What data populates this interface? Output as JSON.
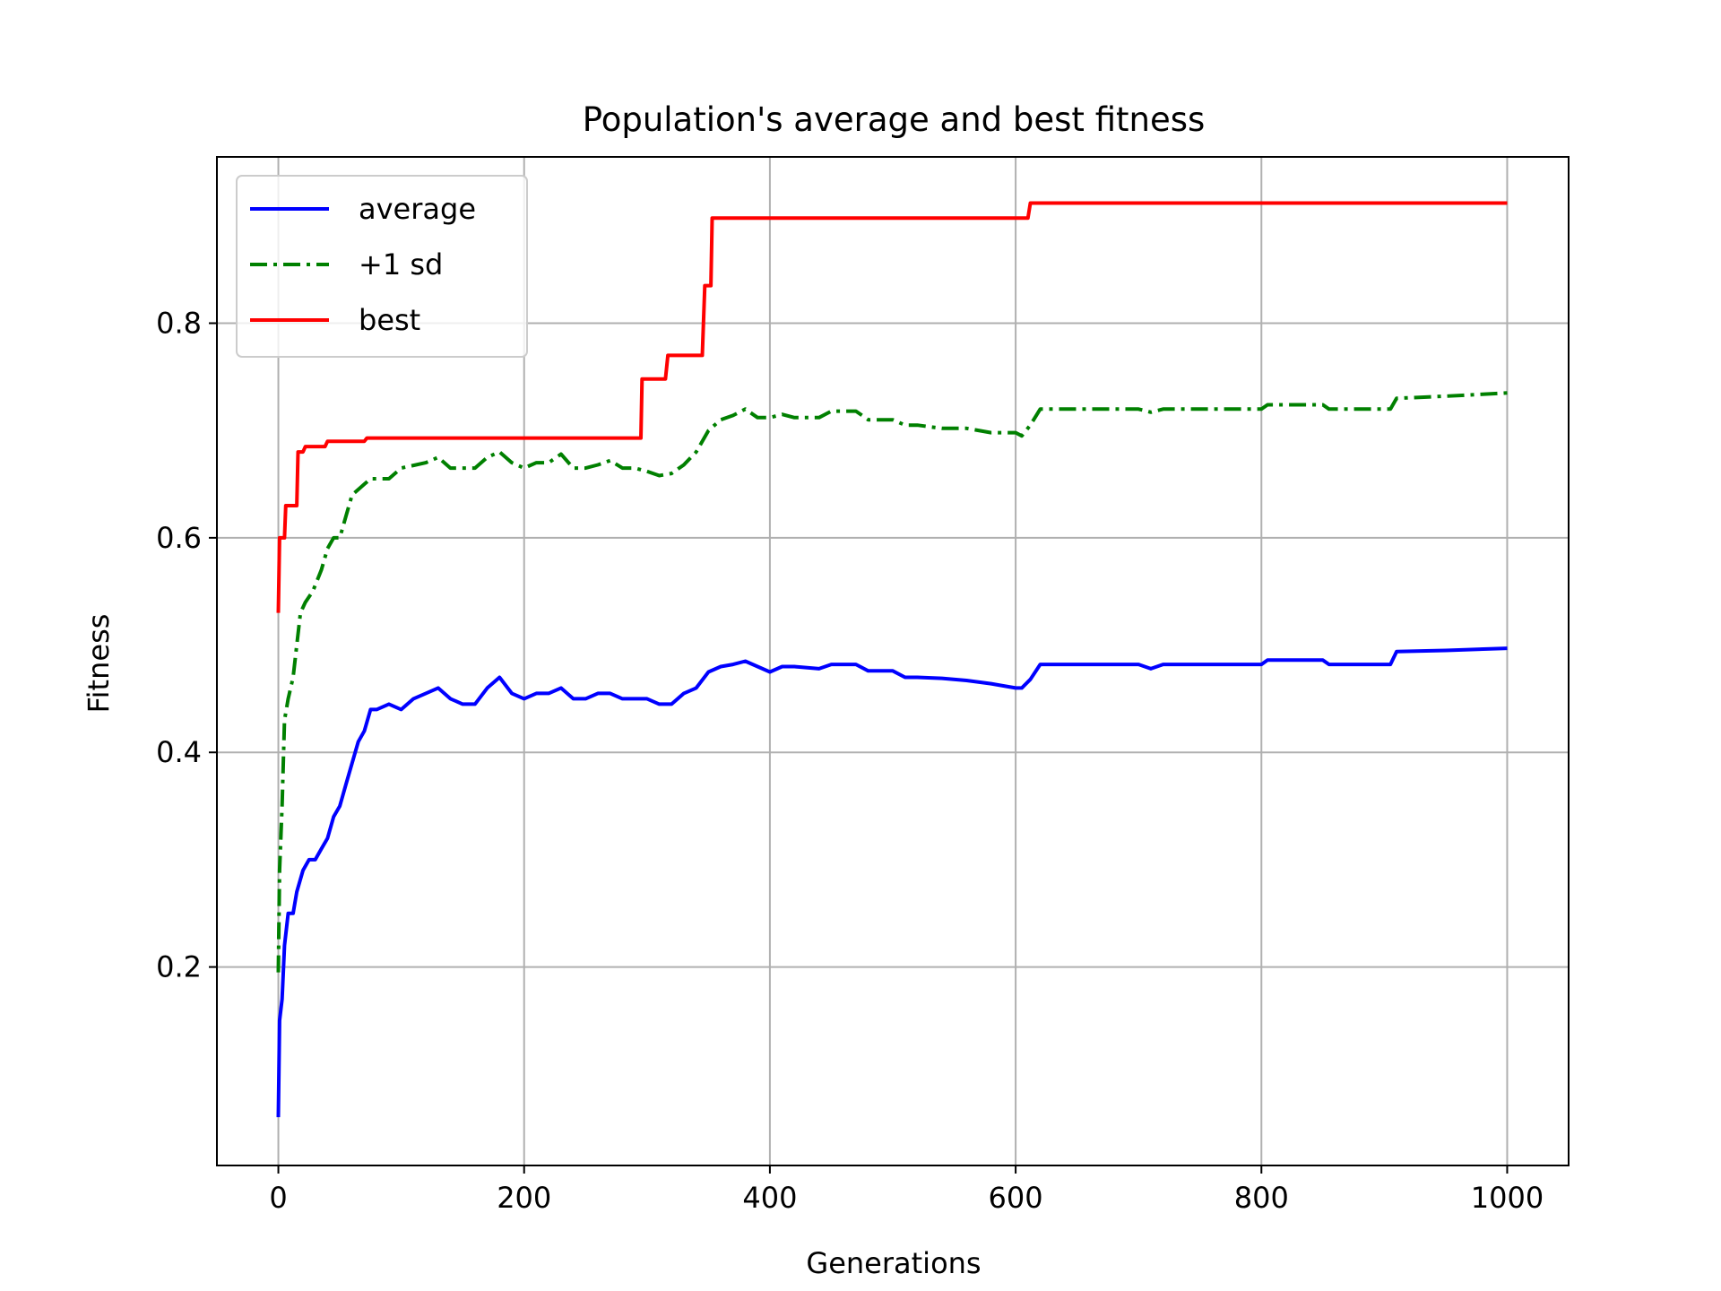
{
  "chart_data": {
    "type": "line",
    "title": "Population's average and best fitness",
    "xlabel": "Generations",
    "ylabel": "Fitness",
    "xlim": [
      -50,
      1050
    ],
    "ylim": [
      0.015,
      0.955
    ],
    "xticks": [
      0,
      200,
      400,
      600,
      800,
      1000
    ],
    "yticks": [
      0.2,
      0.4,
      0.6,
      0.8
    ],
    "xtick_labels": [
      "0",
      "200",
      "400",
      "600",
      "800",
      "1000"
    ],
    "ytick_labels": [
      "0.2",
      "0.4",
      "0.6",
      "0.8"
    ],
    "grid": true,
    "legend": "upper-left",
    "series": [
      {
        "name": "average",
        "color": "#0000ff",
        "style": "solid",
        "points": [
          [
            0,
            0.06
          ],
          [
            1,
            0.15
          ],
          [
            3,
            0.17
          ],
          [
            5,
            0.22
          ],
          [
            8,
            0.25
          ],
          [
            12,
            0.25
          ],
          [
            15,
            0.27
          ],
          [
            20,
            0.29
          ],
          [
            25,
            0.3
          ],
          [
            30,
            0.3
          ],
          [
            35,
            0.31
          ],
          [
            40,
            0.32
          ],
          [
            45,
            0.34
          ],
          [
            50,
            0.35
          ],
          [
            55,
            0.37
          ],
          [
            60,
            0.39
          ],
          [
            65,
            0.41
          ],
          [
            70,
            0.42
          ],
          [
            75,
            0.44
          ],
          [
            80,
            0.44
          ],
          [
            90,
            0.445
          ],
          [
            100,
            0.44
          ],
          [
            110,
            0.45
          ],
          [
            120,
            0.455
          ],
          [
            130,
            0.46
          ],
          [
            140,
            0.45
          ],
          [
            150,
            0.445
          ],
          [
            160,
            0.445
          ],
          [
            170,
            0.46
          ],
          [
            180,
            0.47
          ],
          [
            190,
            0.455
          ],
          [
            200,
            0.45
          ],
          [
            210,
            0.455
          ],
          [
            220,
            0.455
          ],
          [
            230,
            0.46
          ],
          [
            240,
            0.45
          ],
          [
            250,
            0.45
          ],
          [
            260,
            0.455
          ],
          [
            270,
            0.455
          ],
          [
            280,
            0.45
          ],
          [
            290,
            0.45
          ],
          [
            300,
            0.45
          ],
          [
            310,
            0.445
          ],
          [
            320,
            0.445
          ],
          [
            330,
            0.455
          ],
          [
            340,
            0.46
          ],
          [
            350,
            0.475
          ],
          [
            360,
            0.48
          ],
          [
            370,
            0.482
          ],
          [
            380,
            0.485
          ],
          [
            390,
            0.48
          ],
          [
            400,
            0.475
          ],
          [
            410,
            0.48
          ],
          [
            420,
            0.48
          ],
          [
            440,
            0.478
          ],
          [
            450,
            0.482
          ],
          [
            470,
            0.482
          ],
          [
            480,
            0.476
          ],
          [
            500,
            0.476
          ],
          [
            510,
            0.47
          ],
          [
            520,
            0.47
          ],
          [
            540,
            0.469
          ],
          [
            560,
            0.467
          ],
          [
            580,
            0.464
          ],
          [
            600,
            0.46
          ],
          [
            605,
            0.46
          ],
          [
            612,
            0.468
          ],
          [
            620,
            0.482
          ],
          [
            700,
            0.482
          ],
          [
            710,
            0.478
          ],
          [
            720,
            0.482
          ],
          [
            800,
            0.482
          ],
          [
            805,
            0.486
          ],
          [
            850,
            0.486
          ],
          [
            855,
            0.482
          ],
          [
            905,
            0.482
          ],
          [
            910,
            0.494
          ],
          [
            950,
            0.495
          ],
          [
            1000,
            0.497
          ]
        ]
      },
      {
        "name": "+1 sd",
        "color": "#008000",
        "style": "dashdot",
        "points": [
          [
            0,
            0.195
          ],
          [
            1,
            0.29
          ],
          [
            3,
            0.35
          ],
          [
            5,
            0.43
          ],
          [
            8,
            0.45
          ],
          [
            12,
            0.47
          ],
          [
            15,
            0.5
          ],
          [
            18,
            0.53
          ],
          [
            22,
            0.54
          ],
          [
            28,
            0.55
          ],
          [
            35,
            0.57
          ],
          [
            40,
            0.59
          ],
          [
            45,
            0.6
          ],
          [
            50,
            0.6
          ],
          [
            55,
            0.62
          ],
          [
            60,
            0.64
          ],
          [
            65,
            0.645
          ],
          [
            70,
            0.65
          ],
          [
            75,
            0.655
          ],
          [
            90,
            0.655
          ],
          [
            100,
            0.665
          ],
          [
            120,
            0.67
          ],
          [
            130,
            0.675
          ],
          [
            140,
            0.665
          ],
          [
            160,
            0.665
          ],
          [
            170,
            0.675
          ],
          [
            180,
            0.68
          ],
          [
            190,
            0.67
          ],
          [
            200,
            0.665
          ],
          [
            210,
            0.67
          ],
          [
            220,
            0.67
          ],
          [
            230,
            0.678
          ],
          [
            240,
            0.665
          ],
          [
            250,
            0.665
          ],
          [
            260,
            0.668
          ],
          [
            270,
            0.672
          ],
          [
            280,
            0.665
          ],
          [
            290,
            0.665
          ],
          [
            300,
            0.662
          ],
          [
            310,
            0.658
          ],
          [
            320,
            0.66
          ],
          [
            330,
            0.668
          ],
          [
            340,
            0.68
          ],
          [
            350,
            0.7
          ],
          [
            360,
            0.71
          ],
          [
            370,
            0.714
          ],
          [
            380,
            0.72
          ],
          [
            390,
            0.712
          ],
          [
            400,
            0.712
          ],
          [
            410,
            0.715
          ],
          [
            420,
            0.712
          ],
          [
            440,
            0.712
          ],
          [
            450,
            0.718
          ],
          [
            470,
            0.718
          ],
          [
            480,
            0.71
          ],
          [
            500,
            0.71
          ],
          [
            510,
            0.705
          ],
          [
            520,
            0.705
          ],
          [
            540,
            0.702
          ],
          [
            560,
            0.702
          ],
          [
            580,
            0.698
          ],
          [
            600,
            0.698
          ],
          [
            605,
            0.695
          ],
          [
            612,
            0.705
          ],
          [
            620,
            0.72
          ],
          [
            700,
            0.72
          ],
          [
            710,
            0.717
          ],
          [
            720,
            0.72
          ],
          [
            800,
            0.72
          ],
          [
            805,
            0.724
          ],
          [
            850,
            0.724
          ],
          [
            855,
            0.72
          ],
          [
            905,
            0.72
          ],
          [
            910,
            0.73
          ],
          [
            950,
            0.732
          ],
          [
            1000,
            0.735
          ]
        ]
      },
      {
        "name": "best",
        "color": "#ff0000",
        "style": "solid",
        "points": [
          [
            0,
            0.53
          ],
          [
            1,
            0.6
          ],
          [
            5,
            0.6
          ],
          [
            6,
            0.63
          ],
          [
            15,
            0.63
          ],
          [
            16,
            0.68
          ],
          [
            20,
            0.68
          ],
          [
            22,
            0.685
          ],
          [
            38,
            0.685
          ],
          [
            40,
            0.69
          ],
          [
            70,
            0.69
          ],
          [
            72,
            0.693
          ],
          [
            295,
            0.693
          ],
          [
            296,
            0.748
          ],
          [
            315,
            0.748
          ],
          [
            317,
            0.77
          ],
          [
            345,
            0.77
          ],
          [
            347,
            0.835
          ],
          [
            352,
            0.835
          ],
          [
            353,
            0.898
          ],
          [
            610,
            0.898
          ],
          [
            612,
            0.912
          ],
          [
            1000,
            0.912
          ]
        ]
      }
    ]
  }
}
